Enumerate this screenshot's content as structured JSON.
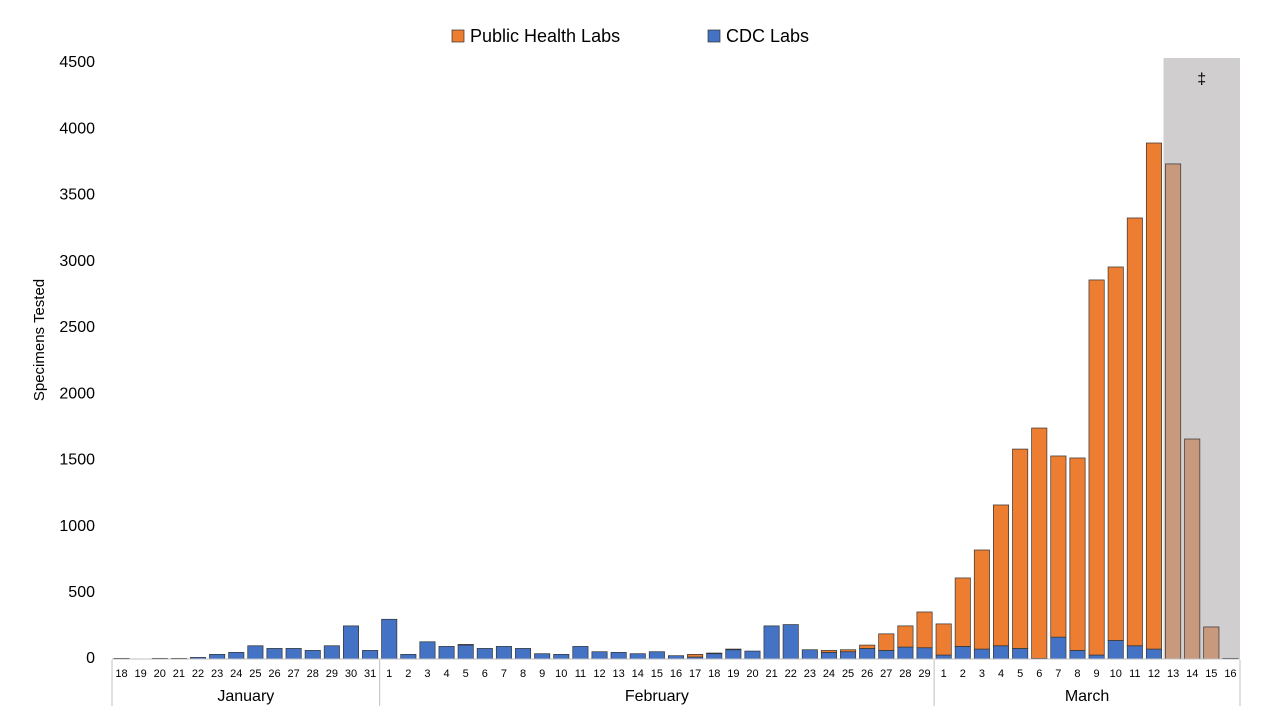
{
  "chart_data": {
    "type": "bar",
    "stacked": true,
    "y_label": "Specimens Tested",
    "categories": [
      "18",
      "19",
      "20",
      "21",
      "22",
      "23",
      "24",
      "25",
      "26",
      "27",
      "28",
      "29",
      "30",
      "31",
      "1",
      "2",
      "3",
      "4",
      "5",
      "6",
      "7",
      "8",
      "9",
      "10",
      "11",
      "12",
      "13",
      "14",
      "15",
      "16",
      "17",
      "18",
      "19",
      "20",
      "21",
      "22",
      "23",
      "24",
      "25",
      "26",
      "27",
      "28",
      "29",
      "1",
      "2",
      "3",
      "4",
      "5",
      "6",
      "7",
      "8",
      "9",
      "10",
      "11",
      "12",
      "13",
      "14",
      "15",
      "16"
    ],
    "months": [
      {
        "name": "January",
        "days": 14
      },
      {
        "name": "February",
        "days": 29
      },
      {
        "name": "March",
        "days": 16
      }
    ],
    "series": [
      {
        "name": "CDC Labs",
        "color": "#4472c4",
        "values": [
          5,
          0,
          5,
          5,
          12,
          35,
          50,
          100,
          80,
          80,
          65,
          100,
          250,
          65,
          300,
          35,
          130,
          95,
          105,
          80,
          95,
          80,
          40,
          35,
          95,
          55,
          50,
          40,
          55,
          25,
          15,
          40,
          70,
          60,
          250,
          260,
          70,
          50,
          55,
          80,
          65,
          90,
          85,
          30,
          95,
          75,
          100,
          80,
          5,
          165,
          65,
          30,
          140,
          100,
          75,
          0,
          0,
          0,
          5
        ]
      },
      {
        "name": "Public Health Labs",
        "color": "#ed7d31",
        "shaded_color": "#c8997c",
        "values": [
          0,
          0,
          0,
          0,
          0,
          0,
          0,
          0,
          0,
          0,
          0,
          0,
          0,
          0,
          0,
          0,
          0,
          0,
          5,
          0,
          0,
          0,
          0,
          0,
          0,
          0,
          0,
          0,
          0,
          0,
          20,
          5,
          5,
          0,
          0,
          0,
          0,
          15,
          15,
          25,
          125,
          160,
          270,
          235,
          517,
          748,
          1063,
          1505,
          1739,
          1368,
          1453,
          2832,
          2820,
          3230,
          3821,
          3738,
          1661,
          242,
          0
        ]
      }
    ],
    "legend_order": [
      "Public Health Labs",
      "CDC Labs"
    ],
    "annotation": {
      "text": "‡",
      "from": 55,
      "to": 58,
      "color": "#d0cece"
    },
    "ylim": [
      0,
      4500
    ],
    "yticks": [
      0,
      500,
      1000,
      1500,
      2000,
      2500,
      3000,
      3500,
      4000,
      4500
    ],
    "grid": false
  }
}
